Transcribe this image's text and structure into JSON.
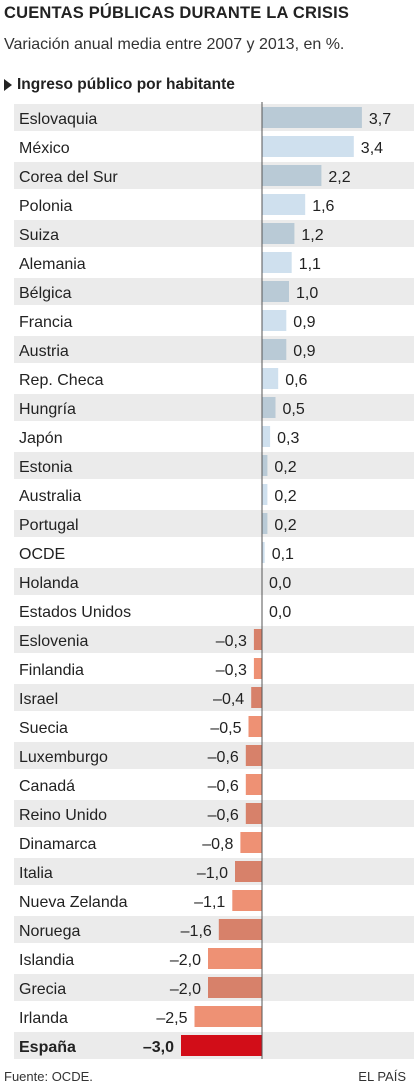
{
  "title": "CUENTAS PÚBLICAS DURANTE LA CRISIS",
  "subtitle": "Variación anual media entre 2007 y 2013, en %.",
  "section_label": "Ingreso público por habitante",
  "footer": {
    "source": "Fuente: OCDE.",
    "credit": "EL PAÍS"
  },
  "colors": {
    "positive_light": "#cfe0ee",
    "positive_dark": "#b9cad6",
    "negative_light": "#ee9174",
    "negative_dark": "#d7816a",
    "highlight": "#d20d18",
    "row_shade": "#ebebeb",
    "axis": "#555555"
  },
  "chart_data": {
    "type": "bar",
    "orientation": "horizontal",
    "categories": [
      "Eslovaquia",
      "México",
      "Corea del Sur",
      "Polonia",
      "Suiza",
      "Alemania",
      "Bélgica",
      "Francia",
      "Austria",
      "Rep. Checa",
      "Hungría",
      "Japón",
      "Estonia",
      "Australia",
      "Portugal",
      "OCDE",
      "Holanda",
      "Estados Unidos",
      "Eslovenia",
      "Finlandia",
      "Israel",
      "Suecia",
      "Luxemburgo",
      "Canadá",
      "Reino Unido",
      "Dinamarca",
      "Italia",
      "Nueva Zelanda",
      "Noruega",
      "Islandia",
      "Grecia",
      "Irlanda",
      "España"
    ],
    "values": [
      3.7,
      3.4,
      2.2,
      1.6,
      1.2,
      1.1,
      1.0,
      0.9,
      0.9,
      0.6,
      0.5,
      0.3,
      0.2,
      0.2,
      0.2,
      0.1,
      0.0,
      0.0,
      -0.3,
      -0.3,
      -0.4,
      -0.5,
      -0.6,
      -0.6,
      -0.6,
      -0.8,
      -1.0,
      -1.1,
      -1.6,
      -2.0,
      -2.0,
      -2.5,
      -3.0
    ],
    "value_labels": [
      "3,7",
      "3,4",
      "2,2",
      "1,6",
      "1,2",
      "1,1",
      "1,0",
      "0,9",
      "0,9",
      "0,6",
      "0,5",
      "0,3",
      "0,2",
      "0,2",
      "0,2",
      "0,1",
      "0,0",
      "0,0",
      "–0,3",
      "–0,3",
      "–0,4",
      "–0,5",
      "–0,6",
      "–0,6",
      "–0,6",
      "–0,8",
      "–1,0",
      "–1,1",
      "–1,6",
      "–2,0",
      "–2,0",
      "–2,5",
      "–3,0"
    ],
    "highlight": "España",
    "xlim": [
      -3.0,
      3.7
    ],
    "title": "Ingreso público por habitante",
    "grid": false
  }
}
